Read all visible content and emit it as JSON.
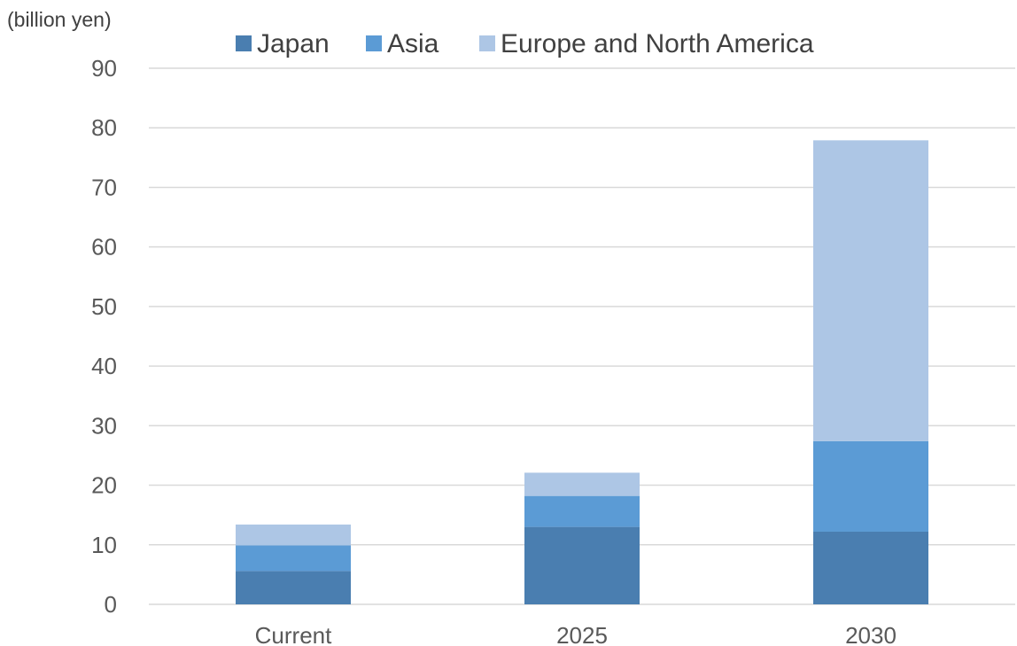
{
  "chart_data": {
    "type": "bar",
    "stacked": true,
    "unit_label": "(billion yen)",
    "categories": [
      "Current",
      "2025",
      "2030"
    ],
    "series": [
      {
        "name": "Japan",
        "color": "#4a7eb0",
        "values": [
          5.6,
          13.0,
          12.2
        ]
      },
      {
        "name": "Asia",
        "color": "#5b9bd5",
        "values": [
          4.3,
          5.2,
          15.2
        ]
      },
      {
        "name": "Europe and North America",
        "color": "#adc6e5",
        "values": [
          3.5,
          3.9,
          50.5
        ]
      }
    ],
    "ylim": [
      0,
      90
    ],
    "yticks": [
      0,
      10,
      20,
      30,
      40,
      50,
      60,
      70,
      80,
      90
    ],
    "grid": true,
    "legend_position": "top"
  }
}
